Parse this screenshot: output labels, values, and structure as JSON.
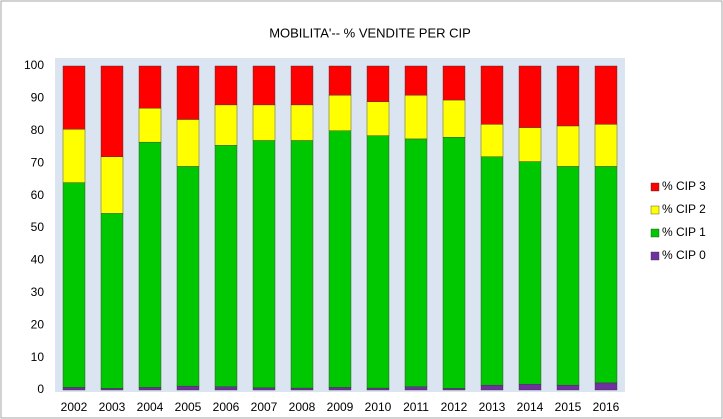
{
  "chart_data": {
    "type": "stacked_bar",
    "title": "MOBILITA'-- % VENDITE PER CIP",
    "categories": [
      "2002",
      "2003",
      "2004",
      "2005",
      "2006",
      "2007",
      "2008",
      "2009",
      "2010",
      "2011",
      "2012",
      "2013",
      "2014",
      "2015",
      "2016"
    ],
    "series": [
      {
        "name": "% CIP 0",
        "color": "#7030a0",
        "values": [
          0.8,
          0.5,
          0.8,
          1.2,
          1,
          0.7,
          0.6,
          0.8,
          0.6,
          1,
          0.5,
          1.5,
          1.8,
          1.5,
          2.2
        ]
      },
      {
        "name": "% CIP 1",
        "color": "#00c800",
        "values": [
          63.2,
          54,
          75.7,
          67.8,
          74.5,
          76.3,
          76.4,
          79.2,
          77.9,
          76.5,
          77.5,
          70.5,
          68.7,
          67.5,
          66.8
        ]
      },
      {
        "name": "% CIP 2",
        "color": "#ffff00",
        "values": [
          16.5,
          17.5,
          10.5,
          14.5,
          12.5,
          11,
          11,
          11,
          10.5,
          13.5,
          11.5,
          10,
          10.5,
          12.5,
          13
        ]
      },
      {
        "name": "% CIP 3",
        "color": "#ff0000",
        "values": [
          19.5,
          28,
          13,
          16.5,
          12,
          12,
          12,
          9,
          11,
          9,
          10.5,
          18,
          19,
          18.5,
          18
        ]
      }
    ],
    "ylim": [
      0,
      100
    ],
    "yticks": [
      0,
      10,
      20,
      30,
      40,
      50,
      60,
      70,
      80,
      90,
      100
    ],
    "grid": false,
    "legend": "right"
  }
}
